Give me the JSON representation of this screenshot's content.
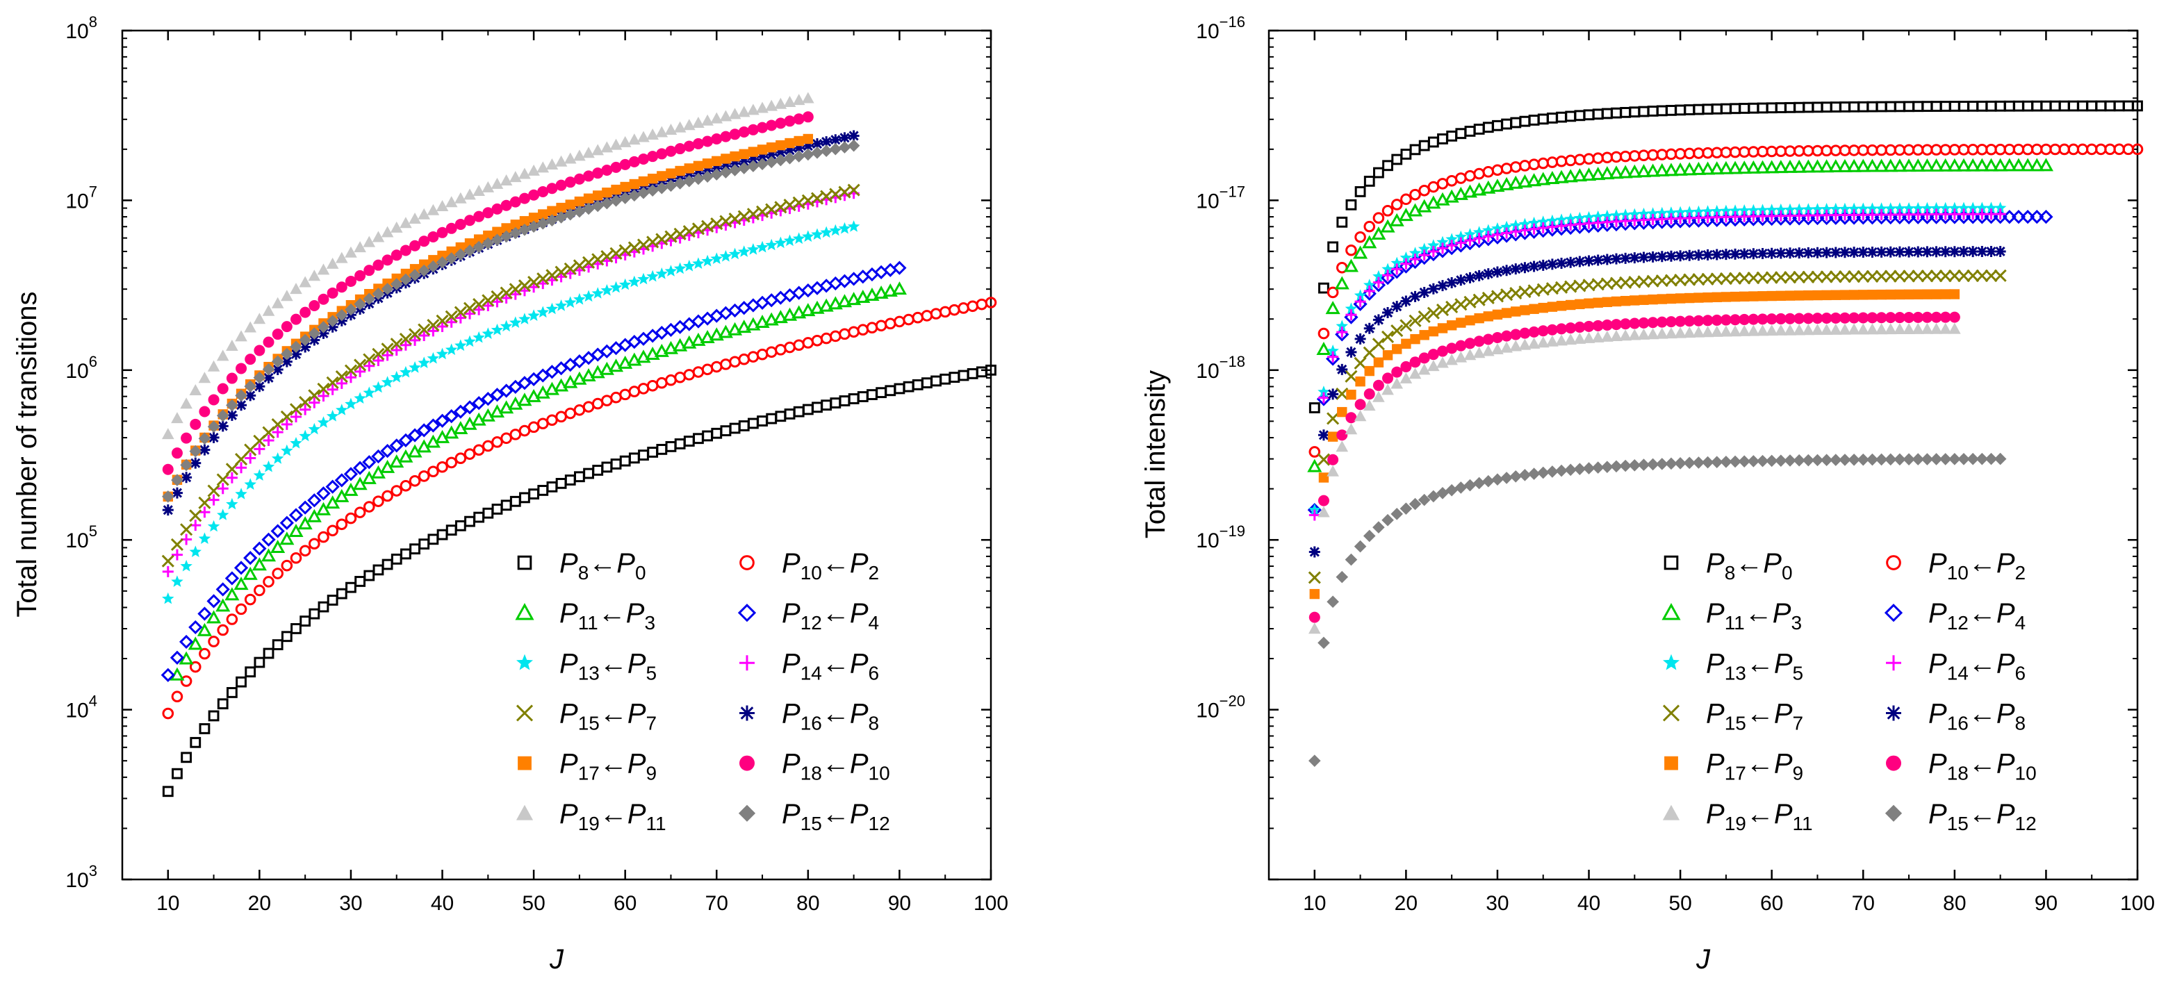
{
  "chart_data": [
    {
      "type": "scatter",
      "yscale": "log",
      "xlabel": "J",
      "ylabel": "Total number of transitions",
      "xlim": [
        5,
        100
      ],
      "ylim": [
        1000,
        100000000
      ],
      "xticks": [
        10,
        20,
        30,
        40,
        50,
        60,
        70,
        80,
        90,
        100
      ],
      "ytick_labels": [
        {
          "base": "10",
          "exp": "3"
        },
        {
          "base": "10",
          "exp": "4"
        },
        {
          "base": "10",
          "exp": "5"
        },
        {
          "base": "10",
          "exp": "6"
        },
        {
          "base": "10",
          "exp": "7"
        },
        {
          "base": "10",
          "exp": "8"
        }
      ],
      "legend_position": "bottom-right",
      "series": [
        {
          "name": "P8←P0",
          "upper": "8",
          "lower": "0",
          "marker": "open-square",
          "color": "#000000",
          "J": [
            10,
            100
          ],
          "start": 3300,
          "end": 1000000,
          "exponent": 2.55
        },
        {
          "name": "P10←P2",
          "upper": "10",
          "lower": "2",
          "marker": "open-circle",
          "color": "#ff0000",
          "J": [
            10,
            100
          ],
          "start": 9500,
          "end": 2500000,
          "exponent": 2.4
        },
        {
          "name": "P11←P3",
          "upper": "11",
          "lower": "3",
          "marker": "open-triangle",
          "color": "#00cc00",
          "J": [
            11,
            90
          ],
          "start": 16000,
          "end": 3000000,
          "exponent": 2.5
        },
        {
          "name": "P12←P4",
          "upper": "12",
          "lower": "4",
          "marker": "open-diamond",
          "color": "#0000ee",
          "J": [
            10,
            90
          ],
          "start": 16000,
          "end": 4000000,
          "exponent": 2.45
        },
        {
          "name": "P13←P5",
          "upper": "13",
          "lower": "5",
          "marker": "star",
          "color": "#00e5ee",
          "J": [
            10,
            85
          ],
          "start": 45000,
          "end": 7000000,
          "exponent": 2.45
        },
        {
          "name": "P14←P6",
          "upper": "14",
          "lower": "6",
          "marker": "plus",
          "color": "#ff00ff",
          "J": [
            10,
            85
          ],
          "start": 65000,
          "end": 11000000,
          "exponent": 2.4
        },
        {
          "name": "P15←P7",
          "upper": "15",
          "lower": "7",
          "marker": "cross",
          "color": "#808000",
          "J": [
            10,
            85
          ],
          "start": 75000,
          "end": 11500000,
          "exponent": 2.35
        },
        {
          "name": "P16←P8",
          "upper": "16",
          "lower": "8",
          "marker": "asterisk",
          "color": "#000080",
          "J": [
            10,
            85
          ],
          "start": 150000,
          "end": 24000000,
          "exponent": 2.45
        },
        {
          "name": "P17←P9",
          "upper": "17",
          "lower": "9",
          "marker": "filled-square",
          "color": "#ff8000",
          "J": [
            10,
            80
          ],
          "start": 180000,
          "end": 23000000,
          "exponent": 2.4
        },
        {
          "name": "P18←P10",
          "upper": "18",
          "lower": "10",
          "marker": "filled-circle",
          "color": "#ff0080",
          "J": [
            10,
            80
          ],
          "start": 260000,
          "end": 31000000,
          "exponent": 2.35
        },
        {
          "name": "P19←P11",
          "upper": "19",
          "lower": "11",
          "marker": "filled-triangle",
          "color": "#c8c8c8",
          "J": [
            10,
            80
          ],
          "start": 420000,
          "end": 40000000,
          "exponent": 2.3
        },
        {
          "name": "P15←P12",
          "upper": "15",
          "lower": "12",
          "marker": "filled-diamond",
          "color": "#808080",
          "J": [
            10,
            85
          ],
          "start": 180000,
          "end": 21000000,
          "exponent": 2.4
        }
      ]
    },
    {
      "type": "scatter",
      "yscale": "log",
      "xlabel": "J",
      "ylabel": "Total intensity",
      "xlim": [
        5,
        100
      ],
      "ylim": [
        1e-21,
        1e-16
      ],
      "xticks": [
        10,
        20,
        30,
        40,
        50,
        60,
        70,
        80,
        90,
        100
      ],
      "ytick_labels": [
        {
          "base": "10",
          "exp": "−20"
        },
        {
          "base": "10",
          "exp": "−19"
        },
        {
          "base": "10",
          "exp": "−18"
        },
        {
          "base": "10",
          "exp": "−17"
        },
        {
          "base": "10",
          "exp": "−16"
        }
      ],
      "legend_position": "bottom-right",
      "series": [
        {
          "name": "P8←P0",
          "upper": "8",
          "lower": "0",
          "marker": "open-square",
          "color": "#000000",
          "J": [
            10,
            100
          ],
          "start": 6e-19,
          "end": 3.6e-17,
          "tau": 14
        },
        {
          "name": "P10←P2",
          "upper": "10",
          "lower": "2",
          "marker": "open-circle",
          "color": "#ff0000",
          "J": [
            10,
            100
          ],
          "start": 3.3e-19,
          "end": 2e-17,
          "tau": 14.5
        },
        {
          "name": "P11←P3",
          "upper": "11",
          "lower": "3",
          "marker": "open-triangle",
          "color": "#00cc00",
          "J": [
            10,
            90
          ],
          "start": 2.7e-19,
          "end": 1.6e-17,
          "tau": 14.5
        },
        {
          "name": "P12←P4",
          "upper": "12",
          "lower": "4",
          "marker": "open-diamond",
          "color": "#0000ee",
          "J": [
            10,
            90
          ],
          "start": 1.5e-19,
          "end": 8e-18,
          "tau": 14.5
        },
        {
          "name": "P13←P5",
          "upper": "13",
          "lower": "5",
          "marker": "star",
          "color": "#00e5ee",
          "J": [
            10,
            85
          ],
          "start": 1.5e-19,
          "end": 9e-18,
          "tau": 14.5
        },
        {
          "name": "P14←P6",
          "upper": "14",
          "lower": "6",
          "marker": "plus",
          "color": "#ff00ff",
          "J": [
            10,
            85
          ],
          "start": 1.4e-19,
          "end": 8.3e-18,
          "tau": 14.5
        },
        {
          "name": "P15←P7",
          "upper": "15",
          "lower": "7",
          "marker": "cross",
          "color": "#808000",
          "J": [
            10,
            85
          ],
          "start": 6e-20,
          "end": 3.6e-18,
          "tau": 14.5
        },
        {
          "name": "P16←P8",
          "upper": "16",
          "lower": "8",
          "marker": "asterisk",
          "color": "#000080",
          "J": [
            10,
            85
          ],
          "start": 8.5e-20,
          "end": 5e-18,
          "tau": 14.5
        },
        {
          "name": "P17←P9",
          "upper": "17",
          "lower": "9",
          "marker": "filled-square",
          "color": "#ff8000",
          "J": [
            10,
            80
          ],
          "start": 4.8e-20,
          "end": 2.8e-18,
          "tau": 14.5
        },
        {
          "name": "P18←P10",
          "upper": "18",
          "lower": "10",
          "marker": "filled-circle",
          "color": "#ff0080",
          "J": [
            10,
            80
          ],
          "start": 3.5e-20,
          "end": 2.05e-18,
          "tau": 14.5
        },
        {
          "name": "P19←P11",
          "upper": "19",
          "lower": "11",
          "marker": "filled-triangle",
          "color": "#c8c8c8",
          "J": [
            10,
            80
          ],
          "start": 3e-20,
          "end": 1.75e-18,
          "tau": 14.5
        },
        {
          "name": "P15←P12",
          "upper": "15",
          "lower": "12",
          "marker": "filled-diamond",
          "color": "#808080",
          "J": [
            10,
            85
          ],
          "start": 5e-21,
          "end": 3e-19,
          "tau": 14.5
        }
      ]
    }
  ]
}
